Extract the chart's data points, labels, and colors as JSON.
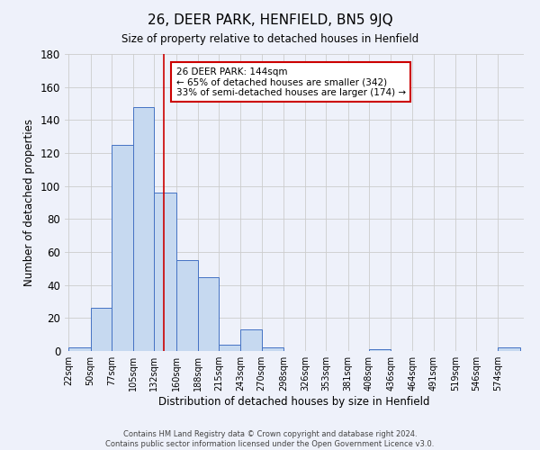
{
  "title": "26, DEER PARK, HENFIELD, BN5 9JQ",
  "subtitle": "Size of property relative to detached houses in Henfield",
  "xlabel": "Distribution of detached houses by size in Henfield",
  "ylabel": "Number of detached properties",
  "bin_labels": [
    "22sqm",
    "50sqm",
    "77sqm",
    "105sqm",
    "132sqm",
    "160sqm",
    "188sqm",
    "215sqm",
    "243sqm",
    "270sqm",
    "298sqm",
    "326sqm",
    "353sqm",
    "381sqm",
    "408sqm",
    "436sqm",
    "464sqm",
    "491sqm",
    "519sqm",
    "546sqm",
    "574sqm"
  ],
  "bar_heights": [
    2,
    26,
    125,
    148,
    96,
    55,
    45,
    4,
    13,
    2,
    0,
    0,
    0,
    0,
    1,
    0,
    0,
    0,
    0,
    0,
    2
  ],
  "bar_color": "#c6d9f0",
  "bar_edge_color": "#4472c4",
  "ylim": [
    0,
    180
  ],
  "yticks": [
    0,
    20,
    40,
    60,
    80,
    100,
    120,
    140,
    160,
    180
  ],
  "vline_x": 144,
  "bin_edges": [
    22,
    50,
    77,
    105,
    132,
    160,
    188,
    215,
    243,
    270,
    298,
    326,
    353,
    381,
    408,
    436,
    464,
    491,
    519,
    546,
    574,
    602
  ],
  "annotation_title": "26 DEER PARK: 144sqm",
  "annotation_line1": "← 65% of detached houses are smaller (342)",
  "annotation_line2": "33% of semi-detached houses are larger (174) →",
  "annotation_box_color": "#ffffff",
  "annotation_box_edge": "#cc0000",
  "vline_color": "#cc0000",
  "footer_line1": "Contains HM Land Registry data © Crown copyright and database right 2024.",
  "footer_line2": "Contains public sector information licensed under the Open Government Licence v3.0.",
  "background_color": "#eef1fa",
  "plot_background": "#eef1fa"
}
